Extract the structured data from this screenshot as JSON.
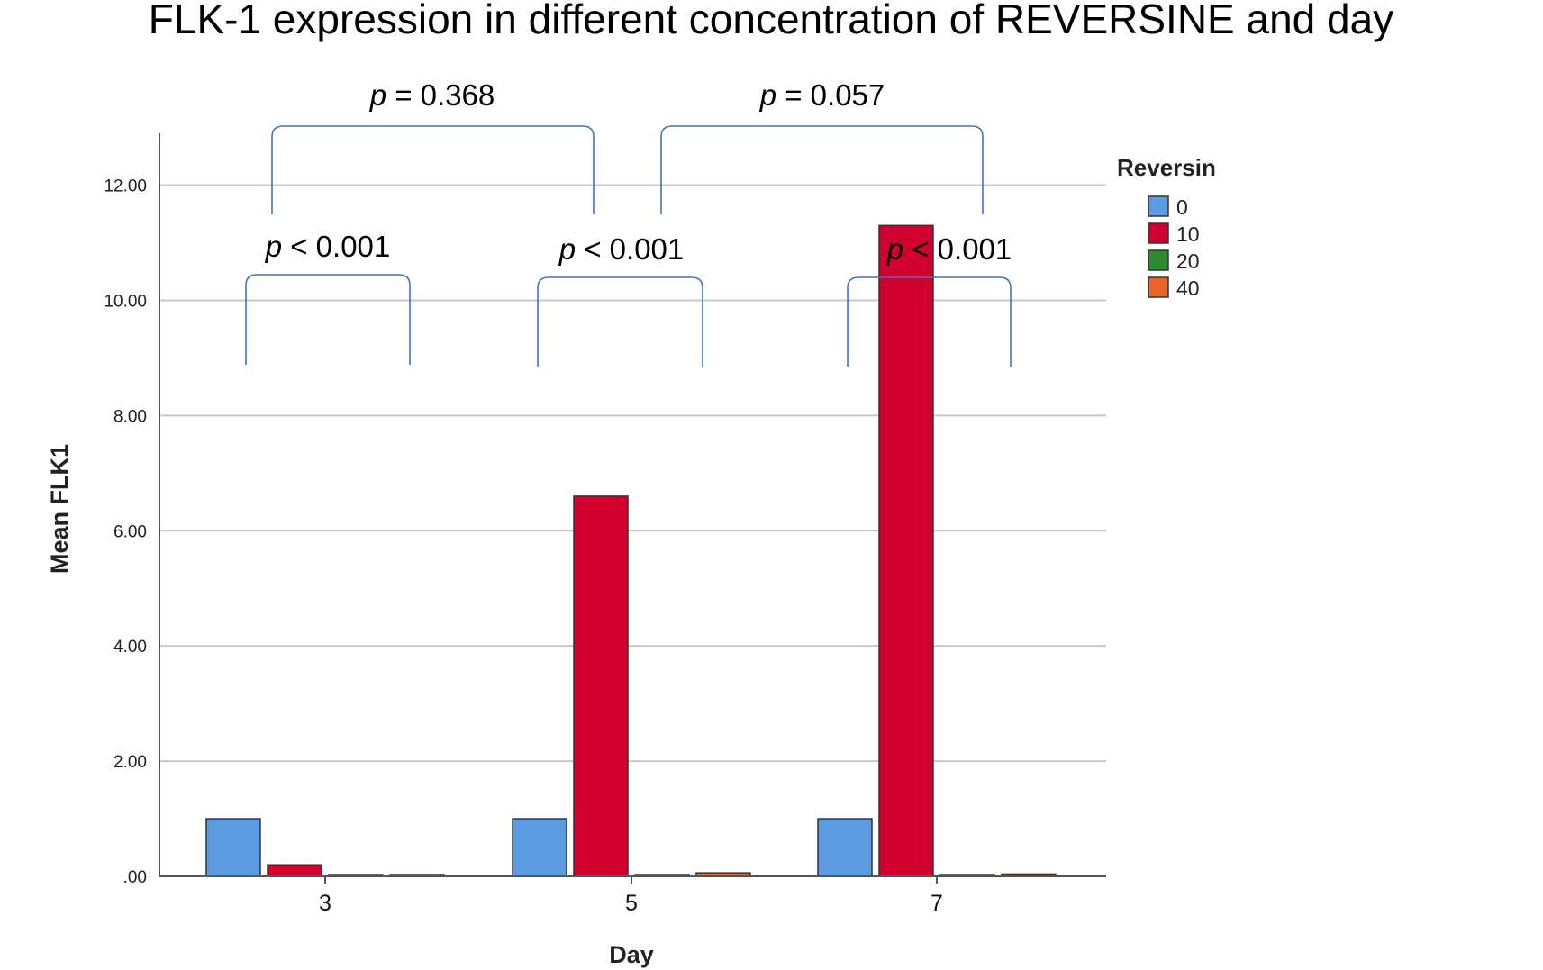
{
  "chart_data": {
    "type": "bar",
    "title": "FLK-1 expression in different concentration of REVERSINE and day",
    "xlabel": "Day",
    "ylabel": "Mean FLK1",
    "categories": [
      "3",
      "5",
      "7"
    ],
    "ylim": [
      0,
      12.9
    ],
    "yticks": [
      0,
      2,
      4,
      6,
      8,
      10,
      12
    ],
    "ytick_labels": [
      ".00",
      "2.00",
      "4.00",
      "6.00",
      "8.00",
      "10.00",
      "12.00"
    ],
    "grid": true,
    "legend": {
      "title": "Reversin",
      "position": "top-right"
    },
    "series": [
      {
        "name": "0",
        "color": "#5b9be0",
        "values": [
          1.0,
          1.0,
          1.0
        ]
      },
      {
        "name": "10",
        "color": "#d2002e",
        "values": [
          0.2,
          6.6,
          11.3
        ]
      },
      {
        "name": "20",
        "color": "#2e8b2e",
        "values": [
          0.01,
          0.01,
          0.01
        ]
      },
      {
        "name": "40",
        "color": "#e8642a",
        "values": [
          0.03,
          0.06,
          0.04
        ]
      }
    ],
    "annotations": {
      "within_day": [
        {
          "day": "3",
          "prefix": "p",
          "text": " < 0.001"
        },
        {
          "day": "5",
          "prefix": "p",
          "text": " < 0.001"
        },
        {
          "day": "7",
          "prefix": "p",
          "text": " < 0.001"
        }
      ],
      "between_days": [
        {
          "from": "3",
          "to": "5",
          "prefix": "p",
          "text": " = 0.368"
        },
        {
          "from": "5",
          "to": "7",
          "prefix": "p",
          "text": " = 0.057"
        }
      ]
    },
    "colors": {
      "bracket": "#4472c4",
      "grid": "#c8c8c8",
      "axis": "#555555"
    }
  }
}
